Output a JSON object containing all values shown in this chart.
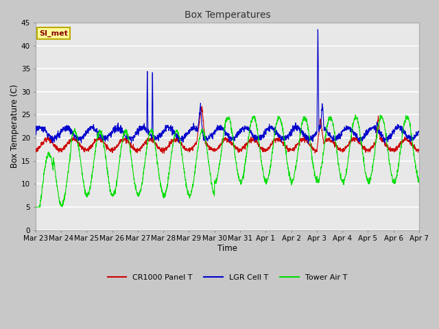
{
  "title": "Box Temperatures",
  "xlabel": "Time",
  "ylabel": "Box Temperature (C)",
  "ylim": [
    0,
    45
  ],
  "bg_color": "#e8e8e8",
  "grid_color": "#ffffff",
  "annotation_text": "SI_met",
  "annotation_bg": "#ffff99",
  "annotation_border": "#bbaa00",
  "annotation_text_color": "#880000",
  "line_colors": {
    "panel": "#cc0000",
    "lgr": "#0000cc",
    "tower": "#00dd00"
  },
  "legend_labels": [
    "CR1000 Panel T",
    "LGR Cell T",
    "Tower Air T"
  ],
  "tick_labels": [
    "Mar 23",
    "Mar 24",
    "Mar 25",
    "Mar 26",
    "Mar 27",
    "Mar 28",
    "Mar 29",
    "Mar 30",
    "Mar 31",
    "Apr 1",
    "Apr 2",
    "Apr 3",
    "Apr 4",
    "Apr 5",
    "Apr 6",
    "Apr 7"
  ],
  "yticks": [
    0,
    5,
    10,
    15,
    20,
    25,
    30,
    35,
    40,
    45
  ],
  "figsize": [
    6.4,
    4.8
  ],
  "dpi": 100
}
